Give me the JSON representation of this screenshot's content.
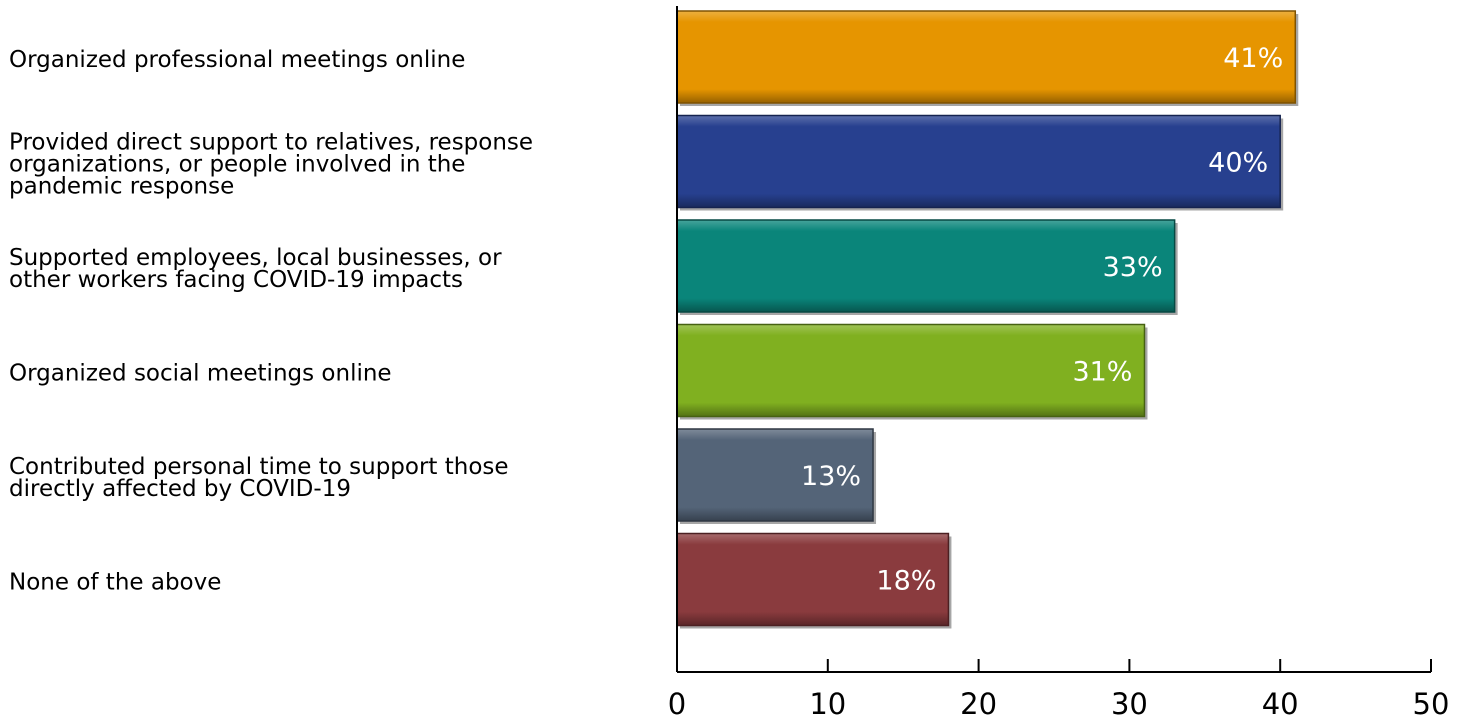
{
  "chart_data": {
    "type": "bar",
    "orientation": "horizontal",
    "categories": [
      [
        "Organized professional meetings online"
      ],
      [
        "Provided direct support to relatives, response",
        "organizations, or people involved in the",
        "pandemic response"
      ],
      [
        "Supported employees, local businesses, or",
        "other workers facing COVID-19 impacts"
      ],
      [
        "Organized social meetings online"
      ],
      [
        "Contributed personal time to support those",
        "directly affected by COVID-19"
      ],
      [
        "None of the above"
      ]
    ],
    "values": [
      41,
      40,
      33,
      31,
      13,
      18
    ],
    "value_labels": [
      "41%",
      "40%",
      "33%",
      "31%",
      "13%",
      "18%"
    ],
    "colors": [
      "#e69500",
      "#27408f",
      "#0a857a",
      "#80b020",
      "#546478",
      "#8a3b3e"
    ],
    "xlim": [
      0,
      50
    ],
    "xticks": [
      0,
      10,
      20,
      30,
      40,
      50
    ],
    "title": "",
    "xlabel": "",
    "ylabel": "",
    "grid": false,
    "legend": "none"
  }
}
